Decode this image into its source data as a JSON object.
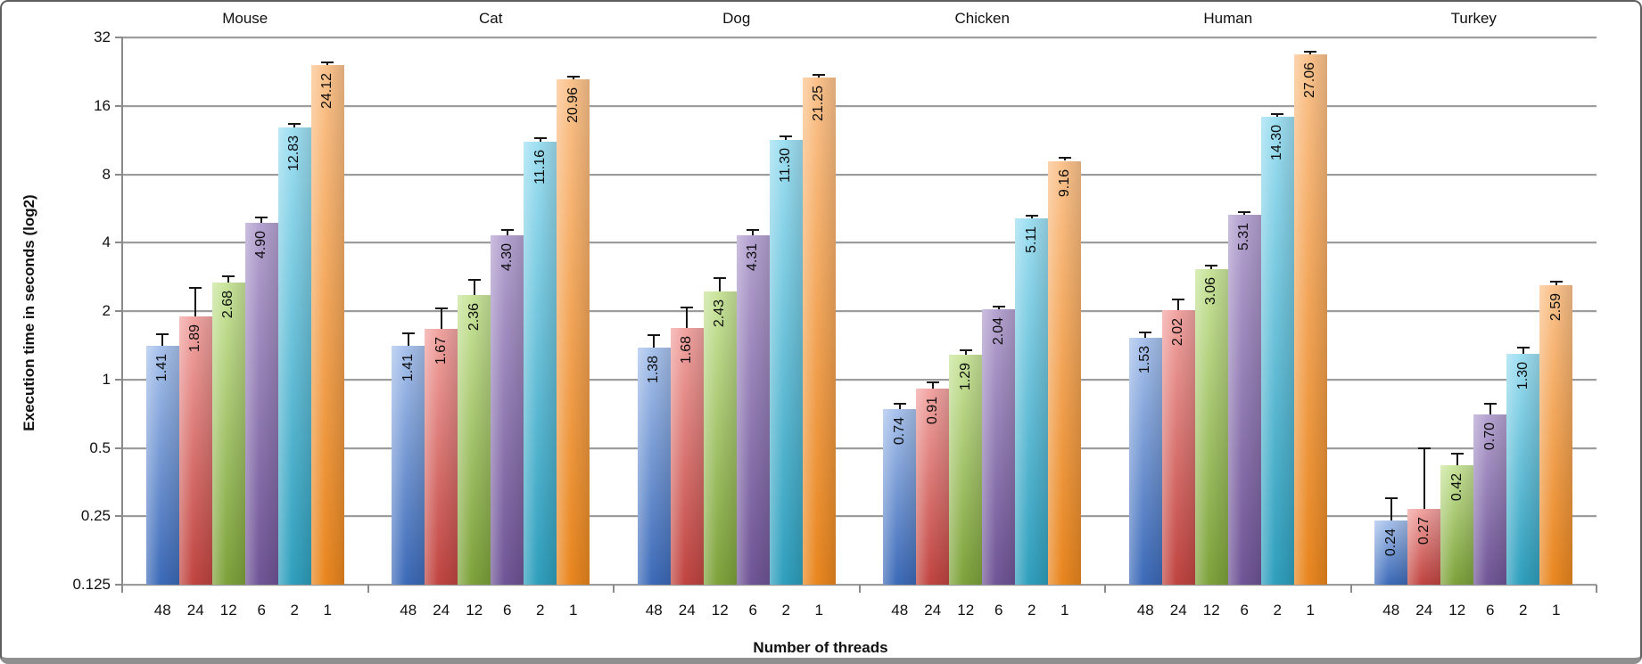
{
  "figure": {
    "ylabel": "Execution time in seconds (log2)",
    "xlabel": "Number of threads"
  },
  "chart_data": {
    "type": "bar",
    "title": "",
    "xlabel": "Number of threads",
    "ylabel": "Execution time in seconds (log2)",
    "y_scale": "log2",
    "ylim": [
      0.125,
      32
    ],
    "y_ticks": [
      "32",
      "16",
      "8",
      "4",
      "2",
      "1",
      "0.5",
      "0.25",
      "0.125"
    ],
    "grid": true,
    "error_bars": true,
    "legend_position": "none",
    "thread_categories": [
      "48",
      "24",
      "12",
      "6",
      "2",
      "1"
    ],
    "series_colors": [
      {
        "name": "threads-48",
        "light": "#a8c2ec",
        "dark": "#3c6ab8"
      },
      {
        "name": "threads-24",
        "light": "#f2a5a2",
        "dark": "#c04440"
      },
      {
        "name": "threads-12",
        "light": "#c9e59b",
        "dark": "#7ea23b"
      },
      {
        "name": "threads-6",
        "light": "#b5a3d1",
        "dark": "#6f5596"
      },
      {
        "name": "threads-2",
        "light": "#9edff2",
        "dark": "#2f9fbd"
      },
      {
        "name": "threads-1",
        "light": "#fbc28c",
        "dark": "#e9861f"
      }
    ],
    "groups": [
      {
        "name": "Mouse",
        "values": [
          1.41,
          1.89,
          2.68,
          4.9,
          12.83,
          24.12
        ],
        "error_tops": [
          1.58,
          2.52,
          2.85,
          5.15,
          13.3,
          24.9
        ]
      },
      {
        "name": "Cat",
        "values": [
          1.41,
          1.67,
          2.36,
          4.3,
          11.16,
          20.96
        ],
        "error_tops": [
          1.6,
          2.05,
          2.75,
          4.55,
          11.55,
          21.5
        ]
      },
      {
        "name": "Dog",
        "values": [
          1.38,
          1.68,
          2.43,
          4.31,
          11.3,
          21.25
        ],
        "error_tops": [
          1.57,
          2.08,
          2.8,
          4.55,
          11.7,
          21.8
        ]
      },
      {
        "name": "Chicken",
        "values": [
          0.74,
          0.91,
          1.29,
          2.04,
          5.11,
          9.16
        ],
        "error_tops": [
          0.78,
          0.97,
          1.34,
          2.09,
          5.25,
          9.45
        ]
      },
      {
        "name": "Human",
        "values": [
          1.53,
          2.02,
          3.06,
          5.31,
          14.3,
          27.06
        ],
        "error_tops": [
          1.61,
          2.25,
          3.16,
          5.45,
          14.7,
          27.7
        ]
      },
      {
        "name": "Turkey",
        "values": [
          0.24,
          0.27,
          0.42,
          0.7,
          1.3,
          2.59
        ],
        "error_tops": [
          0.3,
          0.5,
          0.47,
          0.78,
          1.38,
          2.7
        ]
      }
    ]
  }
}
